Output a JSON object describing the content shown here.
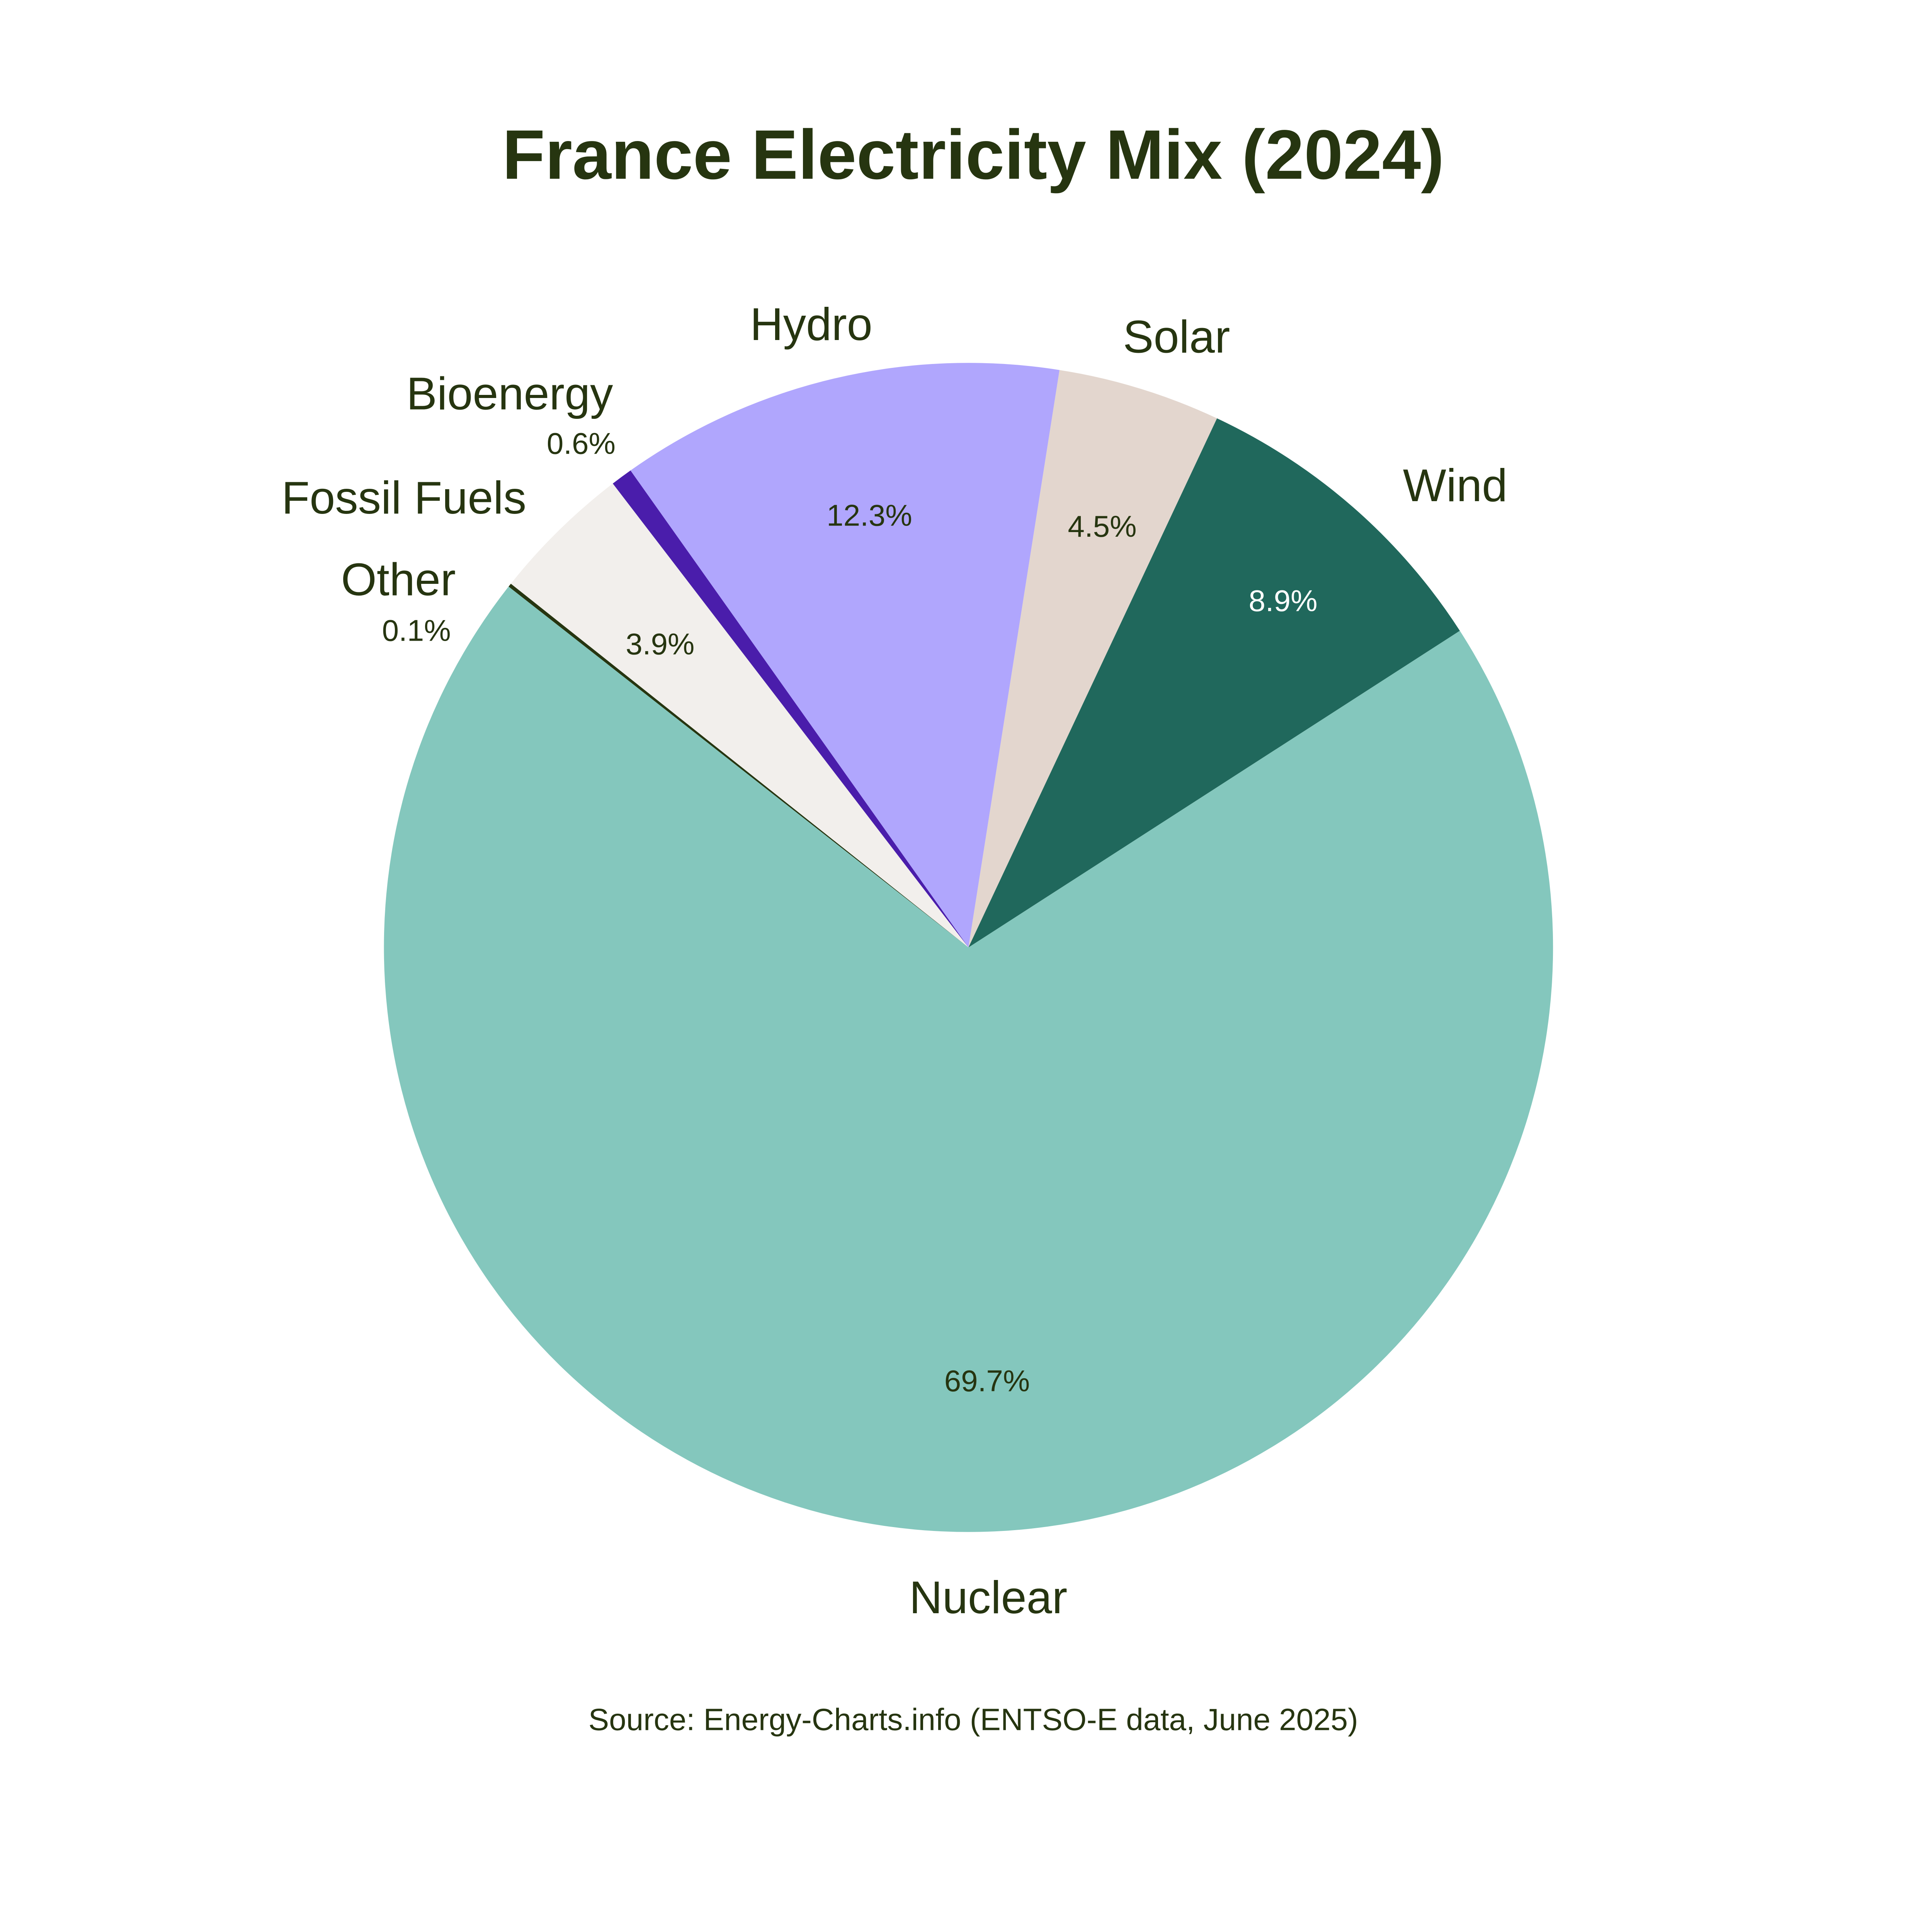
{
  "chart_data": {
    "type": "pie",
    "title": "France Electricity Mix (2024)",
    "source": "Source: Energy-Charts.info (ENTSO-E data, June 2025)",
    "direction": "clockwise",
    "slices": [
      {
        "label": "Nuclear",
        "value": 69.7,
        "pct_label": "69.7%",
        "color": "#84c7bd",
        "pct_color": "#263510"
      },
      {
        "label": "Other",
        "value": 0.1,
        "pct_label": "0.1%",
        "color": "#263510",
        "pct_color": "#263510"
      },
      {
        "label": "Fossil Fuels",
        "value": 3.9,
        "pct_label": "3.9%",
        "color": "#f2efec",
        "pct_color": "#263510"
      },
      {
        "label": "Bioenergy",
        "value": 0.6,
        "pct_label": "0.6%",
        "color": "#4a1dab",
        "pct_color": "#263510"
      },
      {
        "label": "Hydro",
        "value": 12.3,
        "pct_label": "12.3%",
        "color": "#b0a6fd",
        "pct_color": "#263510"
      },
      {
        "label": "Solar",
        "value": 4.5,
        "pct_label": "4.5%",
        "color": "#e3d6ce",
        "pct_color": "#263510"
      },
      {
        "label": "Wind",
        "value": 8.9,
        "pct_label": "8.9%",
        "color": "#20685c",
        "pct_color": "#ffffff"
      }
    ],
    "text_color": "#263510"
  }
}
